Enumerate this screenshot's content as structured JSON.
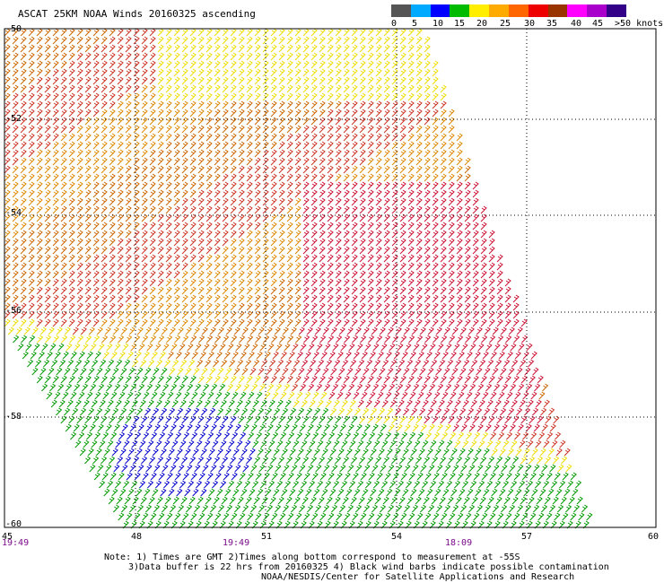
{
  "title": "ASCAT 25KM NOAA Winds 20160325 ascending",
  "legend": {
    "colors": [
      "#555555",
      "#00aaff",
      "#0000ff",
      "#00bb00",
      "#ffee00",
      "#ffaa00",
      "#ff6600",
      "#ee0000",
      "#993300",
      "#ff00ff",
      "#aa00cc",
      "#330088"
    ],
    "labels": [
      "0",
      "5",
      "10",
      "15",
      "20",
      "25",
      "30",
      "35",
      "40",
      "45",
      ">50 knots"
    ]
  },
  "lat_labels": [
    "-50",
    "-52",
    "-54",
    "-56",
    "-58",
    "-60"
  ],
  "lon_labels": [
    "45",
    "48",
    "51",
    "54",
    "57",
    "60"
  ],
  "time_labels": [
    "19:49",
    "19:49",
    "18:09"
  ],
  "notes": [
    "Note: 1) Times are GMT 2)Times along bottom correspond to measurement at -55S",
    "3)Data buffer is 22 hrs from 20160325 4) Black wind barbs indicate possible contamination",
    "NOAA/NESDIS/Center for Satellite Applications and Research"
  ]
}
